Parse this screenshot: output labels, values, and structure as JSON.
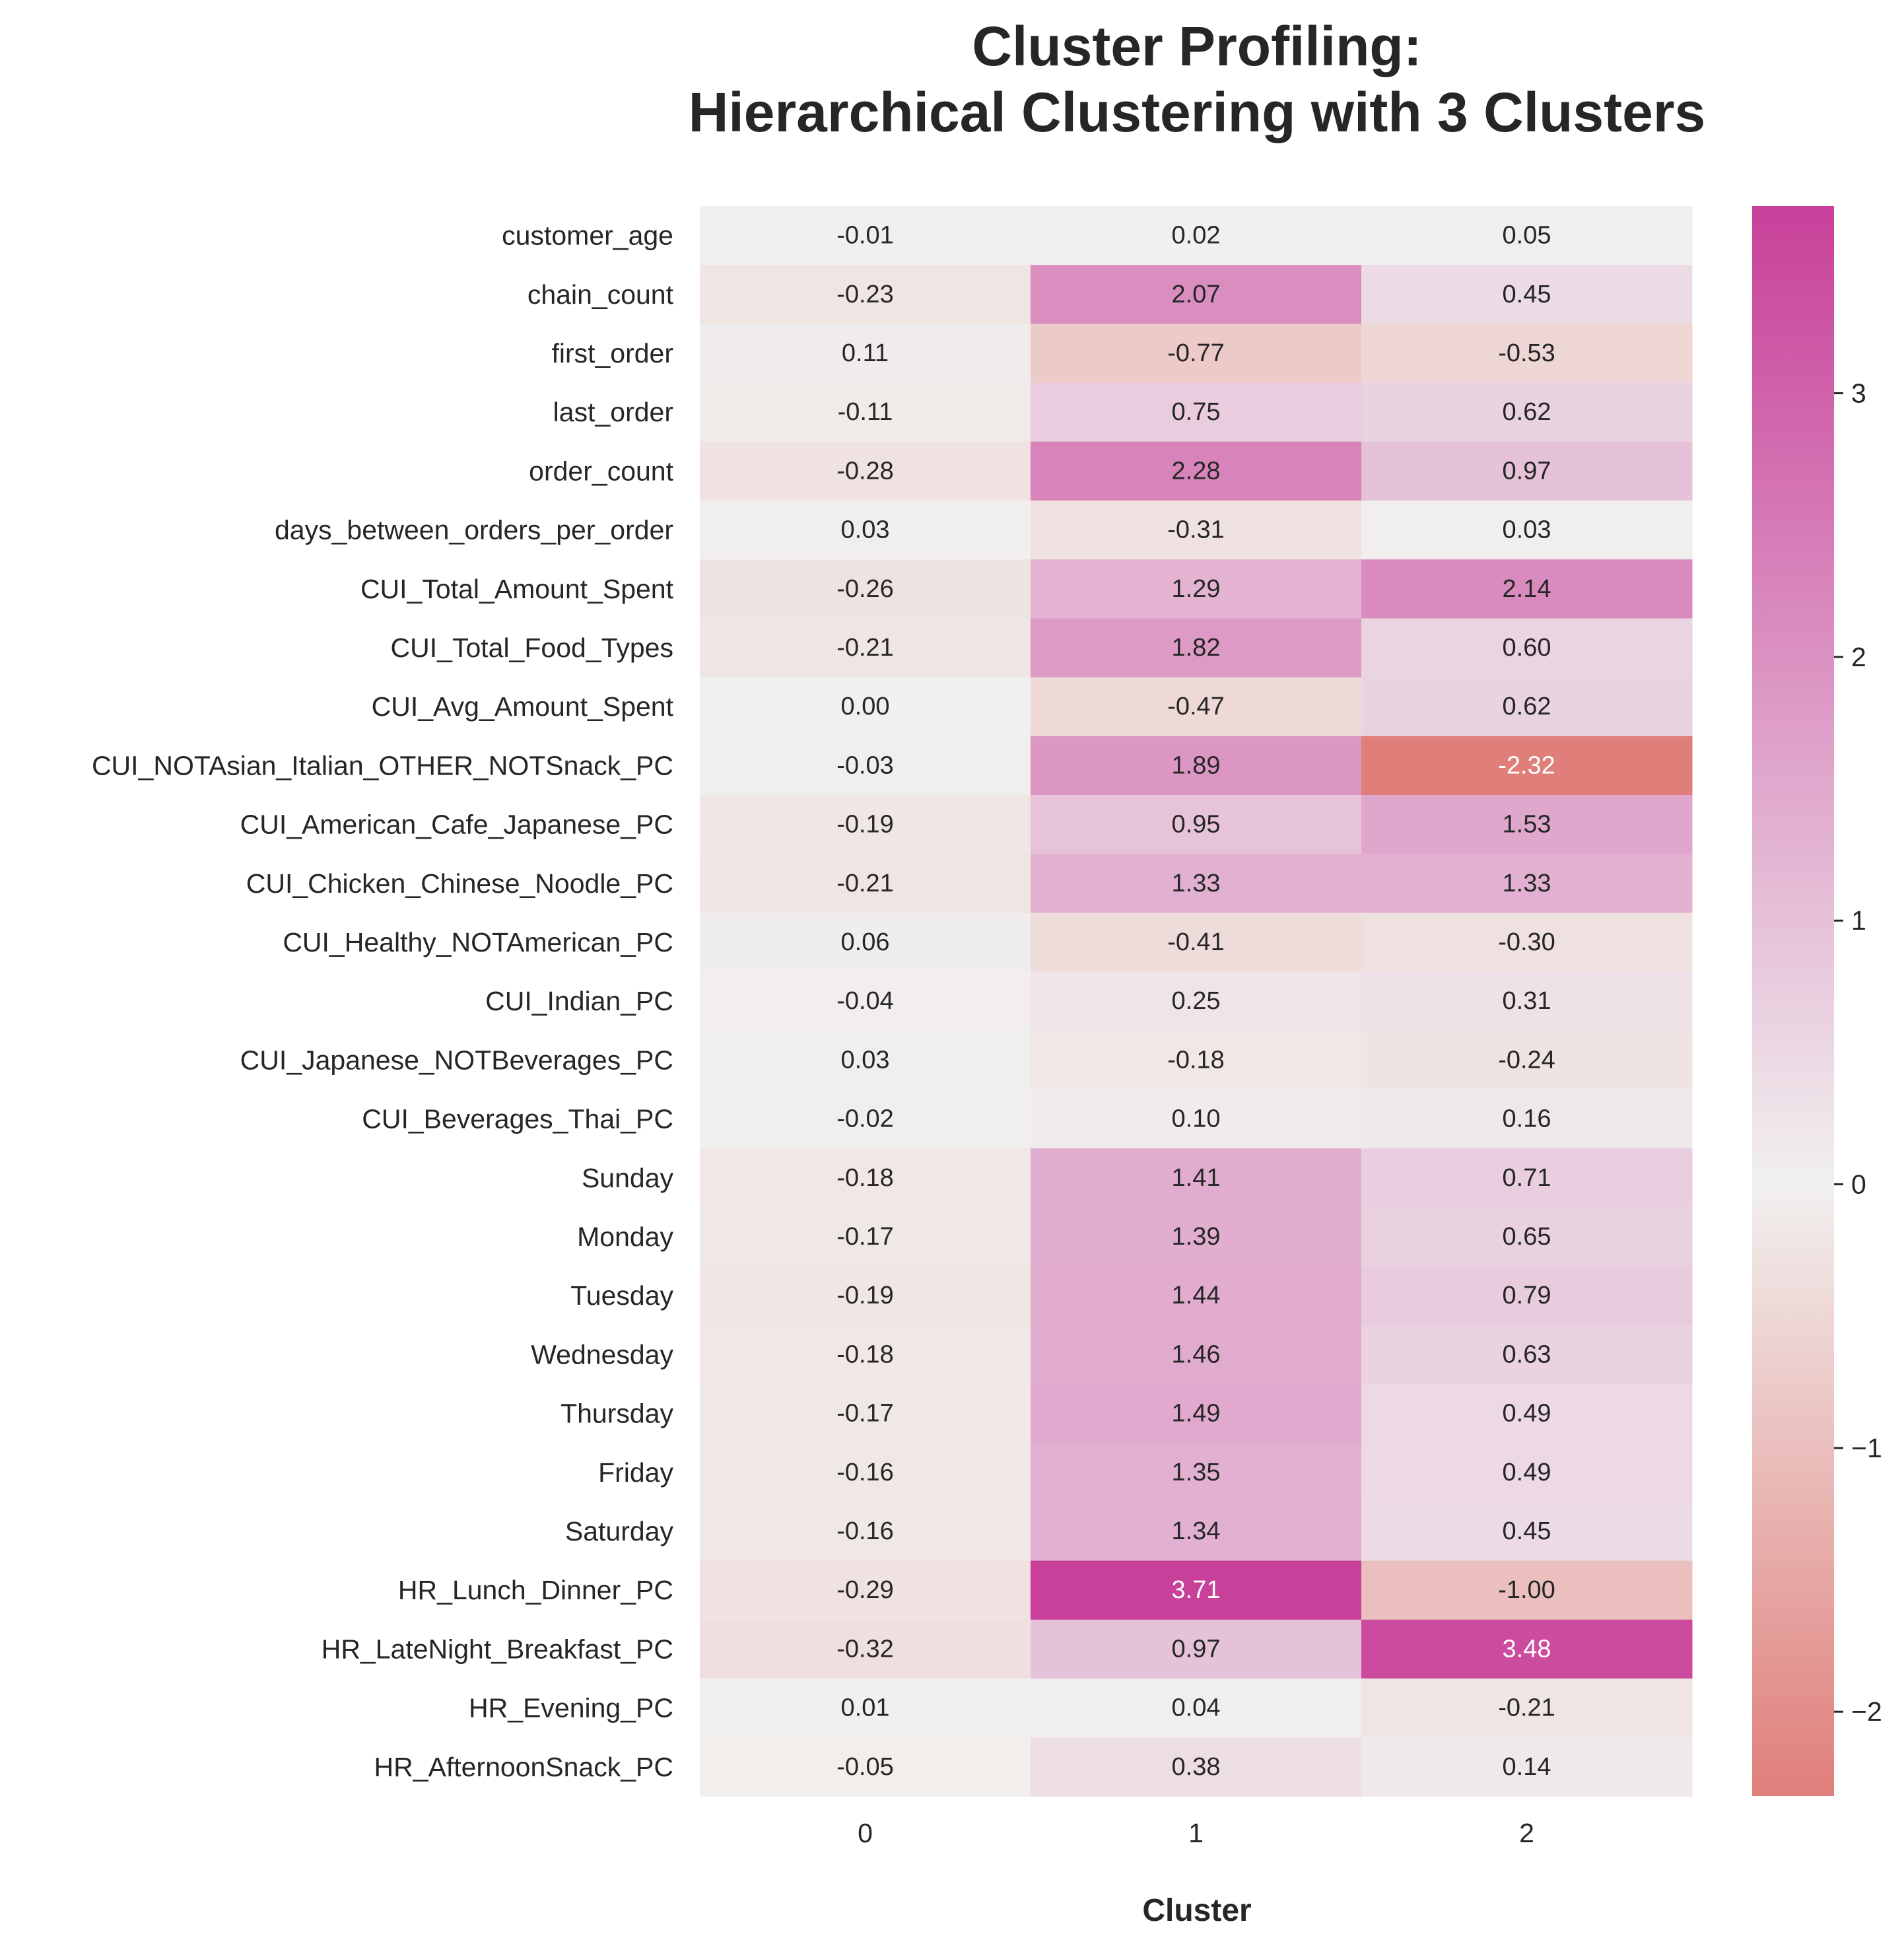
{
  "chart_data": {
    "type": "heatmap",
    "title_lines": [
      "Cluster Profiling:",
      "Hierarchical Clustering with 3 Clusters"
    ],
    "xlabel": "Cluster",
    "ylabel": "",
    "categories": [
      "0",
      "1",
      "2"
    ],
    "rows": [
      "customer_age",
      "chain_count",
      "first_order",
      "last_order",
      "order_count",
      "days_between_orders_per_order",
      "CUI_Total_Amount_Spent",
      "CUI_Total_Food_Types",
      "CUI_Avg_Amount_Spent",
      "CUI_NOTAsian_Italian_OTHER_NOTSnack_PC",
      "CUI_American_Cafe_Japanese_PC",
      "CUI_Chicken_Chinese_Noodle_PC",
      "CUI_Healthy_NOTAmerican_PC",
      "CUI_Indian_PC",
      "CUI_Japanese_NOTBeverages_PC",
      "CUI_Beverages_Thai_PC",
      "Sunday",
      "Monday",
      "Tuesday",
      "Wednesday",
      "Thursday",
      "Friday",
      "Saturday",
      "HR_Lunch_Dinner_PC",
      "HR_LateNight_Breakfast_PC",
      "HR_Evening_PC",
      "HR_AfternoonSnack_PC"
    ],
    "values": [
      [
        -0.01,
        0.02,
        0.05
      ],
      [
        -0.23,
        2.07,
        0.45
      ],
      [
        0.11,
        -0.77,
        -0.53
      ],
      [
        -0.11,
        0.75,
        0.62
      ],
      [
        -0.28,
        2.28,
        0.97
      ],
      [
        0.03,
        -0.31,
        0.03
      ],
      [
        -0.26,
        1.29,
        2.14
      ],
      [
        -0.21,
        1.82,
        0.6
      ],
      [
        0.0,
        -0.47,
        0.62
      ],
      [
        -0.03,
        1.89,
        -2.32
      ],
      [
        -0.19,
        0.95,
        1.53
      ],
      [
        -0.21,
        1.33,
        1.33
      ],
      [
        0.06,
        -0.41,
        -0.3
      ],
      [
        -0.04,
        0.25,
        0.31
      ],
      [
        0.03,
        -0.18,
        -0.24
      ],
      [
        -0.02,
        0.1,
        0.16
      ],
      [
        -0.18,
        1.41,
        0.71
      ],
      [
        -0.17,
        1.39,
        0.65
      ],
      [
        -0.19,
        1.44,
        0.79
      ],
      [
        -0.18,
        1.46,
        0.63
      ],
      [
        -0.17,
        1.49,
        0.49
      ],
      [
        -0.16,
        1.35,
        0.49
      ],
      [
        -0.16,
        1.34,
        0.45
      ],
      [
        -0.29,
        3.71,
        -1.0
      ],
      [
        -0.32,
        0.97,
        3.48
      ],
      [
        0.01,
        0.04,
        -0.21
      ],
      [
        -0.05,
        0.38,
        0.14
      ]
    ],
    "value_format": "2 decimals",
    "colorbar": {
      "range": [
        -2.32,
        3.71
      ],
      "center": 0,
      "ticks": [
        3,
        2,
        1,
        0,
        -1,
        -2
      ],
      "tick_labels": [
        "3",
        "2",
        "1",
        "0",
        "−1",
        "−2"
      ],
      "colors": {
        "low": "#e07e7a",
        "center": "#f1f0ef",
        "high": "#c8409a"
      }
    },
    "grid": false,
    "legend": "colorbar-right"
  }
}
